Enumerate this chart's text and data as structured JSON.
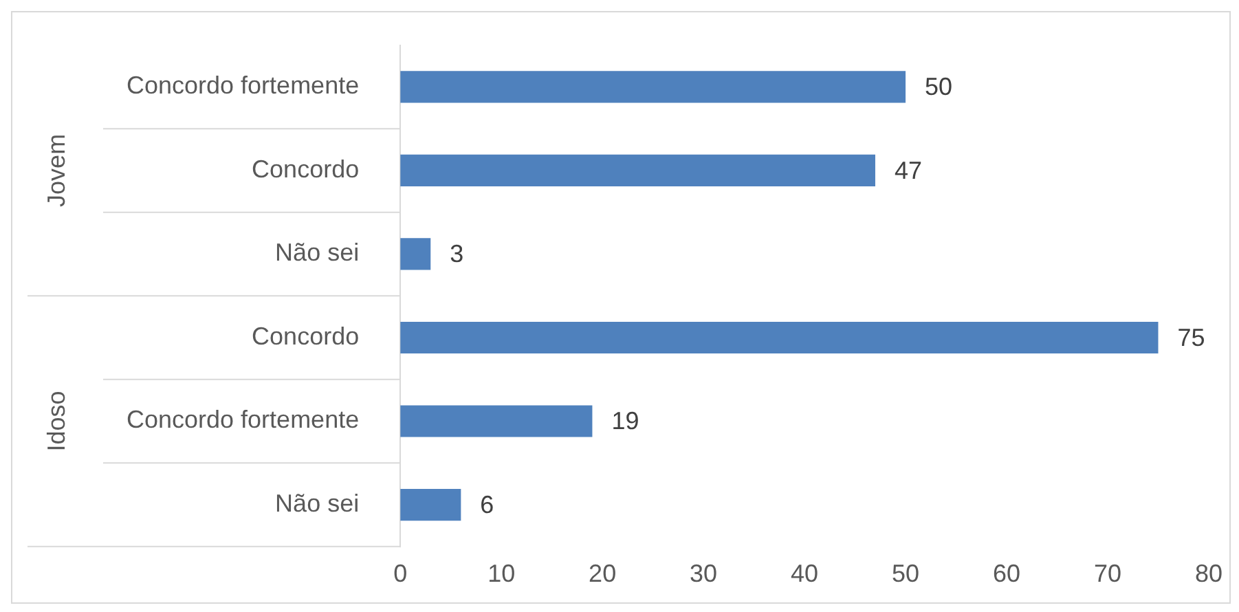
{
  "chart_data": {
    "type": "bar",
    "orientation": "horizontal",
    "categories": [
      "Concordo fortemente",
      "Concordo",
      "Não sei",
      "Concordo",
      "Concordo fortemente",
      "Não sei"
    ],
    "values": [
      50,
      47,
      3,
      75,
      19,
      6
    ],
    "color": "#4f81bd",
    "xlim": [
      0,
      80
    ],
    "xticks": [
      0,
      10,
      20,
      30,
      40,
      50,
      60,
      70,
      80
    ],
    "grid": false,
    "legend": false,
    "data_labels": true,
    "annotations": [
      "Jovem",
      "Idoso"
    ]
  }
}
